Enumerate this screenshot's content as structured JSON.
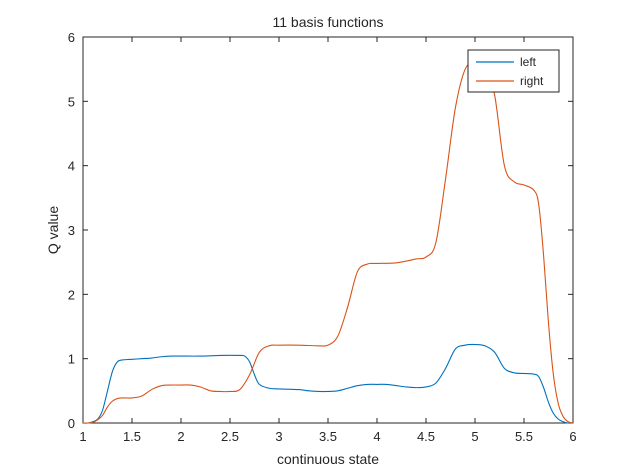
{
  "chart_data": {
    "type": "line",
    "title": "11 basis functions",
    "xlabel": "continuous state",
    "ylabel": "Q value",
    "xlim": [
      1,
      6
    ],
    "ylim": [
      0,
      6
    ],
    "xticks": [
      1,
      1.5,
      2,
      2.5,
      3,
      3.5,
      4,
      4.5,
      5,
      5.5,
      6
    ],
    "yticks": [
      0,
      1,
      2,
      3,
      4,
      5,
      6
    ],
    "grid": false,
    "legend_position": "top-right",
    "series": [
      {
        "name": "left",
        "color": "#0072BD",
        "points": [
          [
            1.0,
            0.0
          ],
          [
            1.05,
            0.0
          ],
          [
            1.1,
            0.02
          ],
          [
            1.15,
            0.06
          ],
          [
            1.2,
            0.2
          ],
          [
            1.25,
            0.5
          ],
          [
            1.3,
            0.8
          ],
          [
            1.35,
            0.95
          ],
          [
            1.4,
            0.98
          ],
          [
            1.5,
            0.99
          ],
          [
            1.6,
            1.0
          ],
          [
            1.7,
            1.01
          ],
          [
            1.8,
            1.03
          ],
          [
            1.9,
            1.04
          ],
          [
            2.0,
            1.04
          ],
          [
            2.2,
            1.04
          ],
          [
            2.4,
            1.05
          ],
          [
            2.6,
            1.05
          ],
          [
            2.65,
            1.04
          ],
          [
            2.7,
            0.95
          ],
          [
            2.75,
            0.75
          ],
          [
            2.8,
            0.6
          ],
          [
            2.9,
            0.54
          ],
          [
            3.0,
            0.53
          ],
          [
            3.2,
            0.52
          ],
          [
            3.3,
            0.5
          ],
          [
            3.4,
            0.49
          ],
          [
            3.5,
            0.49
          ],
          [
            3.6,
            0.5
          ],
          [
            3.7,
            0.54
          ],
          [
            3.8,
            0.58
          ],
          [
            3.9,
            0.6
          ],
          [
            4.0,
            0.6
          ],
          [
            4.1,
            0.6
          ],
          [
            4.2,
            0.58
          ],
          [
            4.3,
            0.56
          ],
          [
            4.4,
            0.55
          ],
          [
            4.5,
            0.56
          ],
          [
            4.6,
            0.62
          ],
          [
            4.7,
            0.85
          ],
          [
            4.8,
            1.15
          ],
          [
            4.9,
            1.21
          ],
          [
            5.0,
            1.22
          ],
          [
            5.1,
            1.2
          ],
          [
            5.2,
            1.1
          ],
          [
            5.3,
            0.85
          ],
          [
            5.4,
            0.78
          ],
          [
            5.5,
            0.77
          ],
          [
            5.6,
            0.76
          ],
          [
            5.65,
            0.72
          ],
          [
            5.7,
            0.55
          ],
          [
            5.75,
            0.32
          ],
          [
            5.8,
            0.15
          ],
          [
            5.85,
            0.06
          ],
          [
            5.9,
            0.02
          ],
          [
            5.95,
            0.0
          ],
          [
            6.0,
            0.0
          ]
        ]
      },
      {
        "name": "right",
        "color": "#D95319",
        "points": [
          [
            1.0,
            0.0
          ],
          [
            1.05,
            0.0
          ],
          [
            1.1,
            0.01
          ],
          [
            1.15,
            0.05
          ],
          [
            1.2,
            0.12
          ],
          [
            1.25,
            0.25
          ],
          [
            1.3,
            0.34
          ],
          [
            1.35,
            0.38
          ],
          [
            1.4,
            0.39
          ],
          [
            1.5,
            0.39
          ],
          [
            1.6,
            0.42
          ],
          [
            1.7,
            0.52
          ],
          [
            1.8,
            0.58
          ],
          [
            1.9,
            0.59
          ],
          [
            2.0,
            0.59
          ],
          [
            2.1,
            0.59
          ],
          [
            2.2,
            0.56
          ],
          [
            2.3,
            0.5
          ],
          [
            2.4,
            0.49
          ],
          [
            2.5,
            0.49
          ],
          [
            2.6,
            0.52
          ],
          [
            2.7,
            0.75
          ],
          [
            2.8,
            1.1
          ],
          [
            2.9,
            1.2
          ],
          [
            3.0,
            1.21
          ],
          [
            3.2,
            1.21
          ],
          [
            3.4,
            1.2
          ],
          [
            3.5,
            1.21
          ],
          [
            3.6,
            1.35
          ],
          [
            3.7,
            1.8
          ],
          [
            3.8,
            2.35
          ],
          [
            3.9,
            2.47
          ],
          [
            4.0,
            2.48
          ],
          [
            4.2,
            2.49
          ],
          [
            4.4,
            2.55
          ],
          [
            4.5,
            2.58
          ],
          [
            4.6,
            2.8
          ],
          [
            4.7,
            3.8
          ],
          [
            4.8,
            4.9
          ],
          [
            4.9,
            5.5
          ],
          [
            5.0,
            5.6
          ],
          [
            5.1,
            5.55
          ],
          [
            5.2,
            5.1
          ],
          [
            5.3,
            4.0
          ],
          [
            5.4,
            3.75
          ],
          [
            5.5,
            3.7
          ],
          [
            5.6,
            3.62
          ],
          [
            5.65,
            3.4
          ],
          [
            5.7,
            2.6
          ],
          [
            5.75,
            1.55
          ],
          [
            5.8,
            0.75
          ],
          [
            5.85,
            0.3
          ],
          [
            5.9,
            0.1
          ],
          [
            5.95,
            0.02
          ],
          [
            6.0,
            0.0
          ]
        ]
      }
    ]
  }
}
